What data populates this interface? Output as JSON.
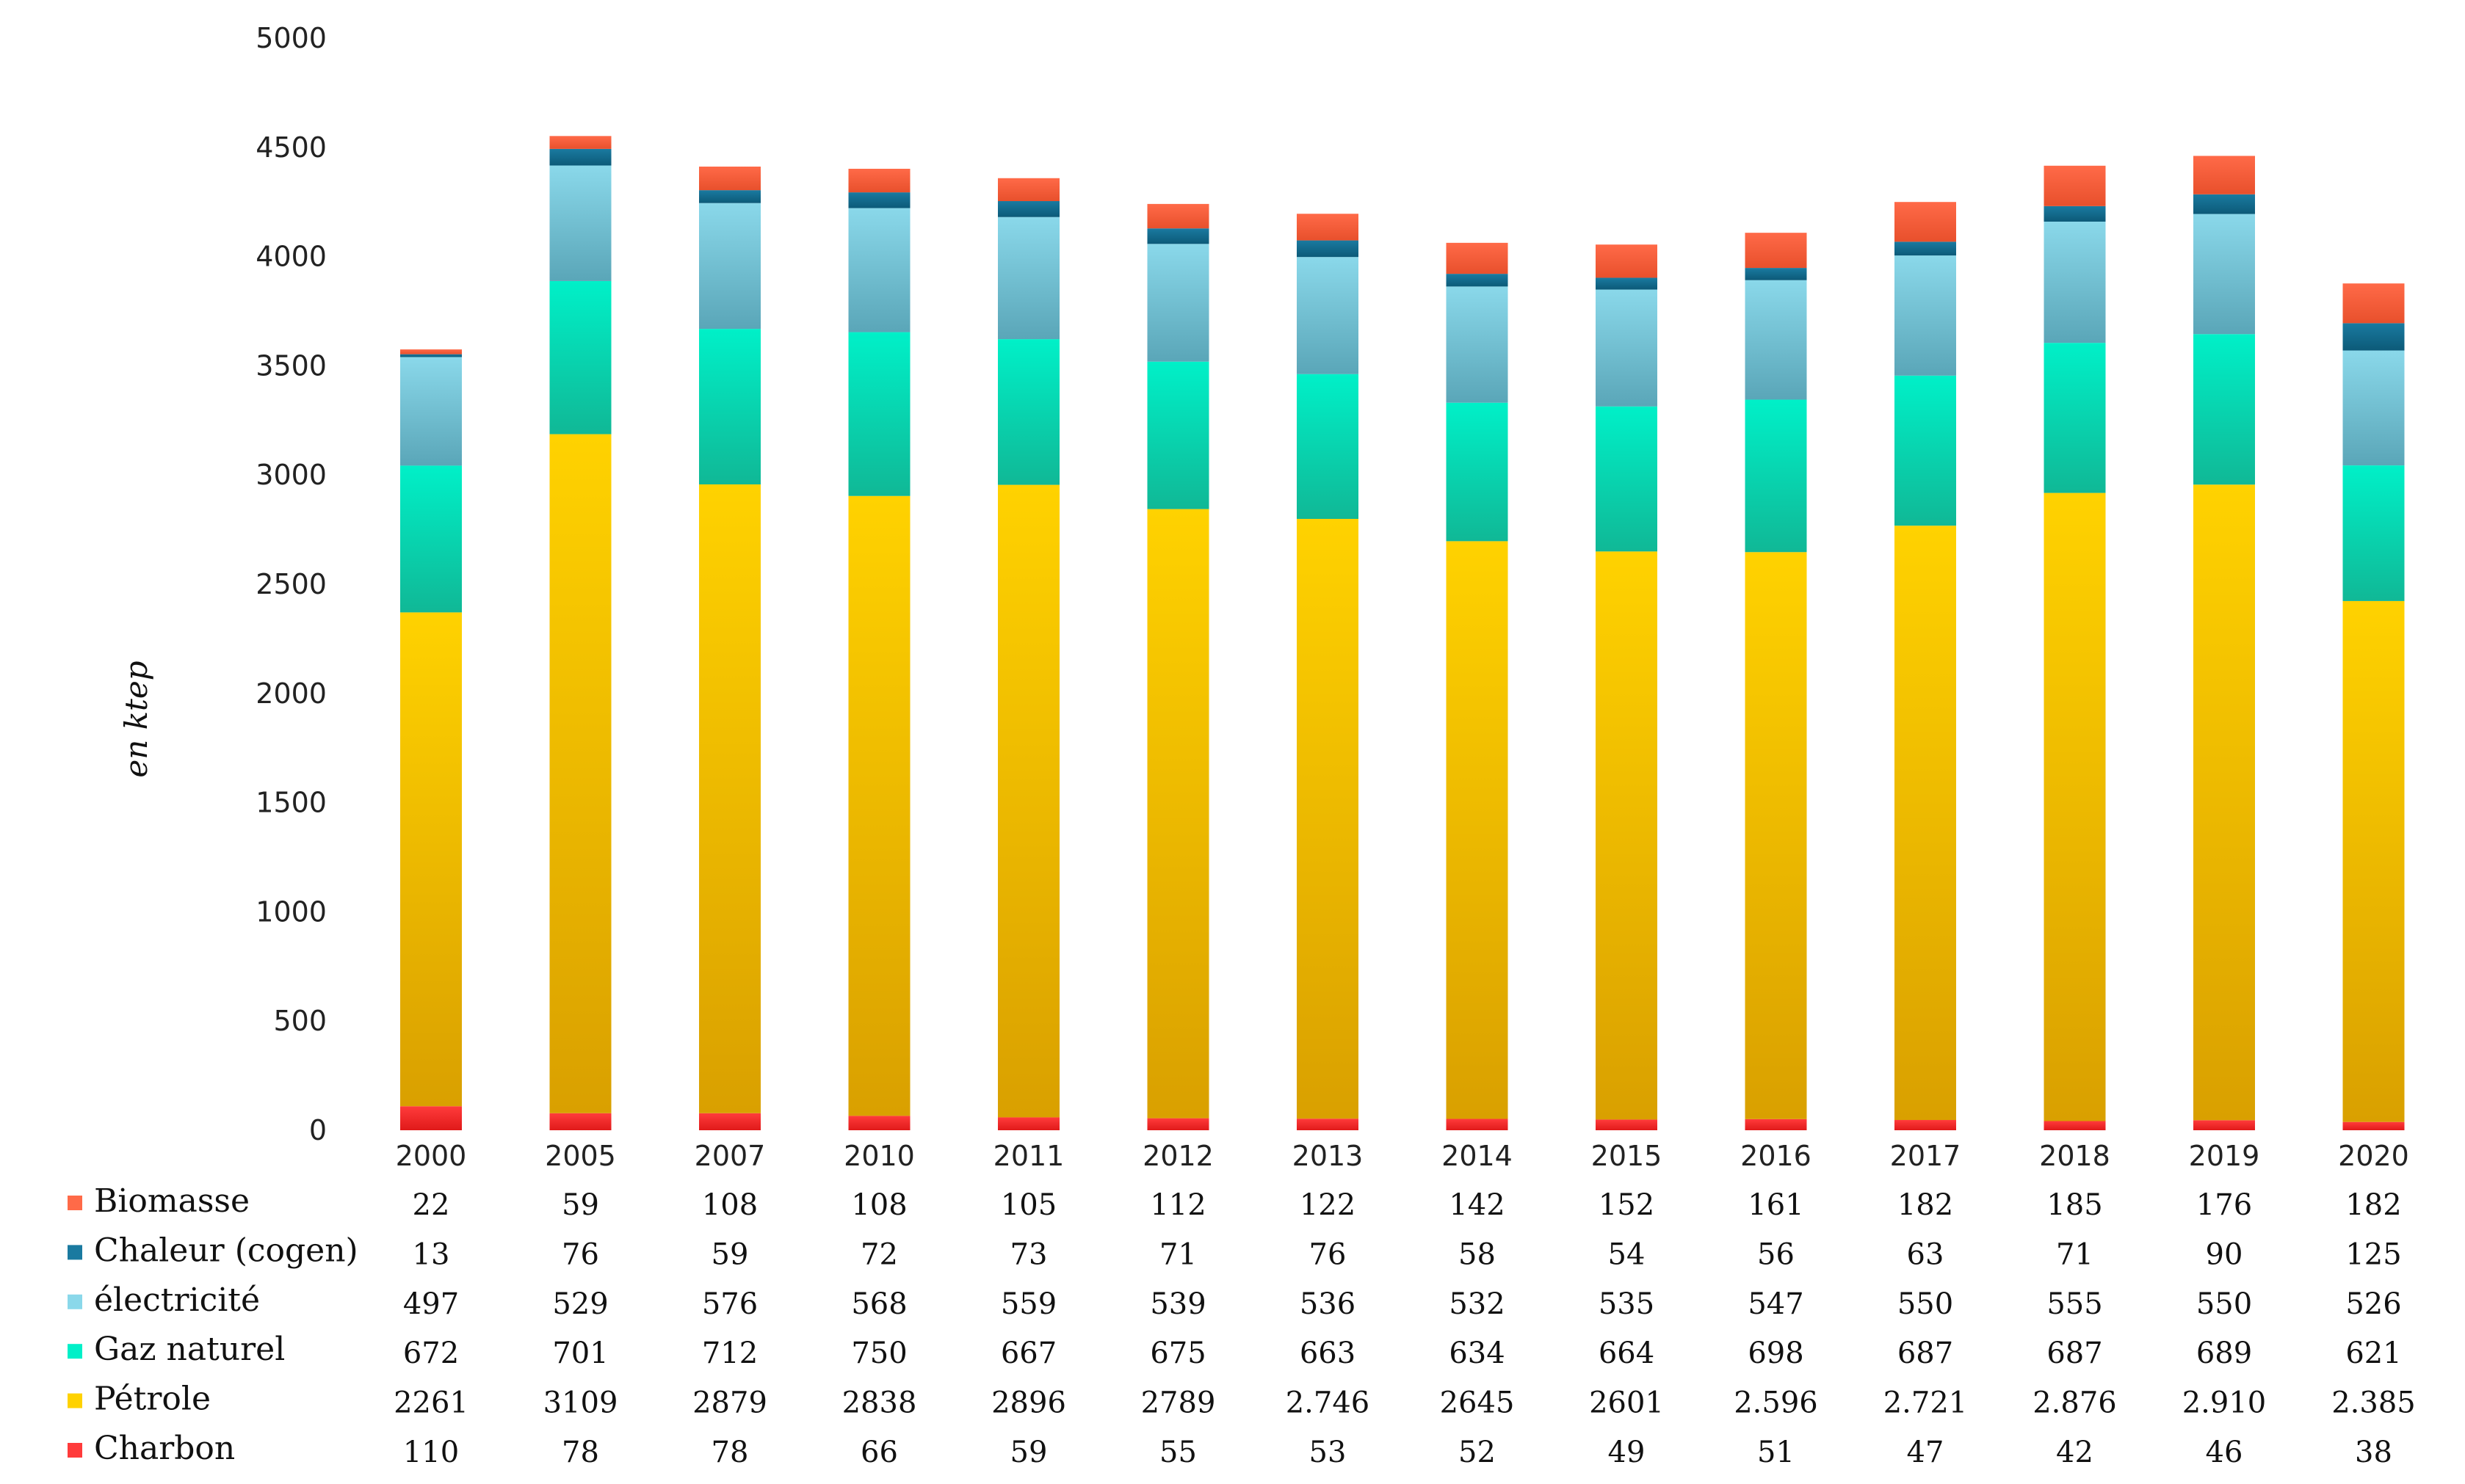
{
  "chart_data": {
    "type": "bar",
    "stacked": true,
    "ylabel": "en ktep",
    "ylim": [
      0,
      5000
    ],
    "yticks": [
      "0",
      "500",
      "1000",
      "1500",
      "2000",
      "2500",
      "3000",
      "3500",
      "4000",
      "4500",
      "5000"
    ],
    "categories": [
      "2000",
      "2005",
      "2007",
      "2010",
      "2011",
      "2012",
      "2013",
      "2014",
      "2015",
      "2016",
      "2017",
      "2018",
      "2019",
      "2020"
    ],
    "series": [
      {
        "name": "Charbon",
        "color_top": "#ff3b3b",
        "color_bottom": "#e01a1a",
        "values": [
          110,
          78,
          78,
          66,
          59,
          55,
          53,
          52,
          49,
          51,
          47,
          42,
          46,
          38
        ],
        "labels": [
          "110",
          "78",
          "78",
          "66",
          "59",
          "55",
          "53",
          "52",
          "49",
          "51",
          "47",
          "42",
          "46",
          "38"
        ]
      },
      {
        "name": "Pétrole",
        "color_top": "#ffd200",
        "color_bottom": "#d9a000",
        "values": [
          2261,
          3109,
          2879,
          2838,
          2896,
          2789,
          2746,
          2645,
          2601,
          2596,
          2721,
          2876,
          2910,
          2385
        ],
        "labels": [
          "2261",
          "3109",
          "2879",
          "2838",
          "2896",
          "2789",
          "2.746",
          "2645",
          "2601",
          "2.596",
          "2.721",
          "2.876",
          "2.910",
          "2.385"
        ]
      },
      {
        "name": "Gaz naturel",
        "color_top": "#00f0c8",
        "color_bottom": "#10b896",
        "values": [
          672,
          701,
          712,
          750,
          667,
          675,
          663,
          634,
          664,
          698,
          687,
          687,
          689,
          621
        ],
        "labels": [
          "672",
          "701",
          "712",
          "750",
          "667",
          "675",
          "663",
          "634",
          "664",
          "698",
          "687",
          "687",
          "689",
          "621"
        ]
      },
      {
        "name": "électricité",
        "color_top": "#8ad8ea",
        "color_bottom": "#5aa6b8",
        "values": [
          497,
          529,
          576,
          568,
          559,
          539,
          536,
          532,
          535,
          547,
          550,
          555,
          550,
          526
        ],
        "labels": [
          "497",
          "529",
          "576",
          "568",
          "559",
          "539",
          "536",
          "532",
          "535",
          "547",
          "550",
          "555",
          "550",
          "526"
        ]
      },
      {
        "name": "Chaleur (cogen)",
        "color_top": "#1a7aa0",
        "color_bottom": "#0c5a78",
        "values": [
          13,
          76,
          59,
          72,
          73,
          71,
          76,
          58,
          54,
          56,
          63,
          71,
          90,
          125
        ],
        "labels": [
          "13",
          "76",
          "59",
          "72",
          "73",
          "71",
          "76",
          "58",
          "54",
          "56",
          "63",
          "71",
          "90",
          "125"
        ]
      },
      {
        "name": "Biomasse",
        "color_top": "#ff6a48",
        "color_bottom": "#e8502c",
        "values": [
          22,
          59,
          108,
          108,
          105,
          112,
          122,
          142,
          152,
          161,
          182,
          185,
          176,
          182
        ],
        "labels": [
          "22",
          "59",
          "108",
          "108",
          "105",
          "112",
          "122",
          "142",
          "152",
          "161",
          "182",
          "185",
          "176",
          "182"
        ]
      }
    ]
  }
}
